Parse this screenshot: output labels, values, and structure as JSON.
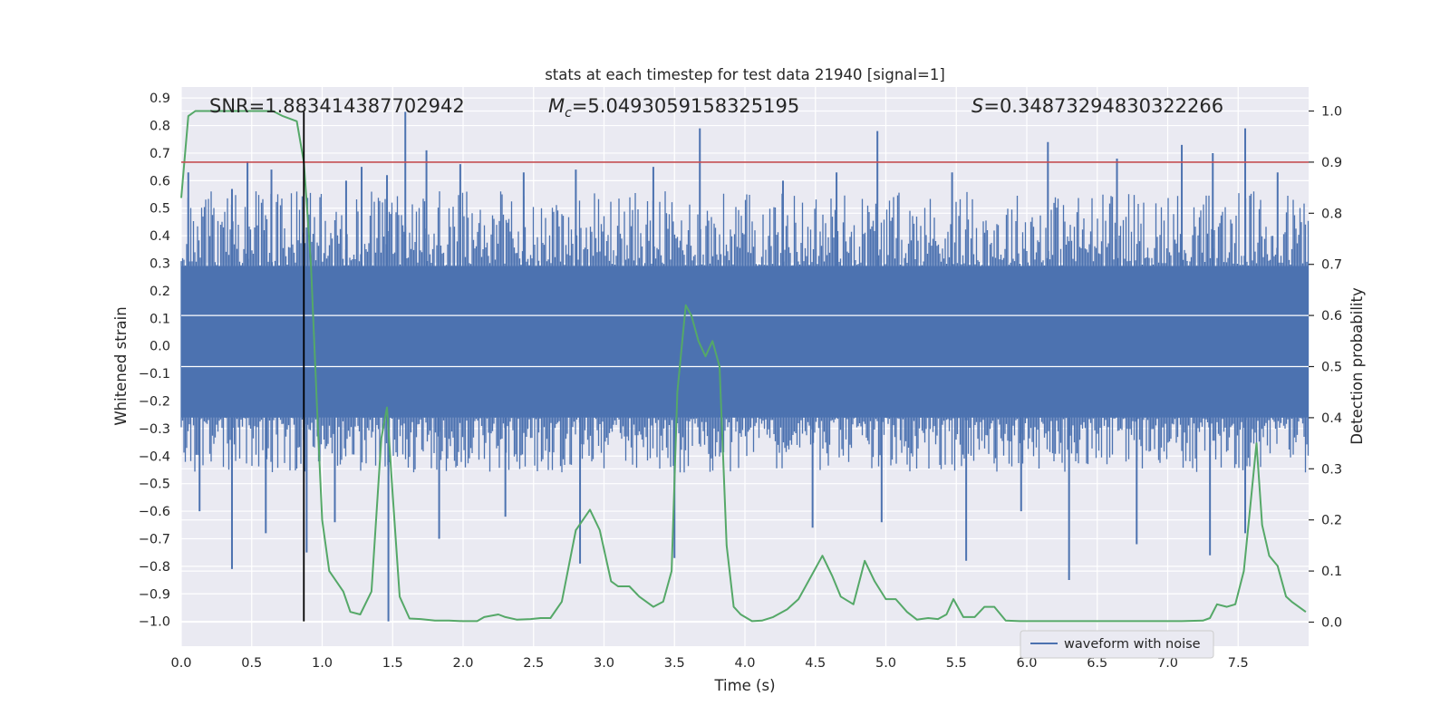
{
  "chart_data": {
    "type": "line",
    "title": "stats at each timestep for test data 21940 [signal=1]",
    "xlabel": "Time (s)",
    "ylabel": "Whitened strain",
    "y2label": "Detection probability",
    "xlim": [
      0.0,
      8.0
    ],
    "ylim": [
      -1.09,
      0.94
    ],
    "y2lim": [
      -0.047,
      1.047
    ],
    "x_ticks": [
      "0.0",
      "0.5",
      "1.0",
      "1.5",
      "2.0",
      "2.5",
      "3.0",
      "3.5",
      "4.0",
      "4.5",
      "5.0",
      "5.5",
      "6.0",
      "6.5",
      "7.0",
      "7.5"
    ],
    "x_tick_values": [
      0.0,
      0.5,
      1.0,
      1.5,
      2.0,
      2.5,
      3.0,
      3.5,
      4.0,
      4.5,
      5.0,
      5.5,
      6.0,
      6.5,
      7.0,
      7.5
    ],
    "y_ticks": [
      "0.9",
      "0.8",
      "0.7",
      "0.6",
      "0.5",
      "0.4",
      "0.3",
      "0.2",
      "0.1",
      "0.0",
      "−0.1",
      "−0.2",
      "−0.3",
      "−0.4",
      "−0.5",
      "−0.6",
      "−0.7",
      "−0.8",
      "−0.9",
      "−1.0"
    ],
    "y_tick_values": [
      0.9,
      0.8,
      0.7,
      0.6,
      0.5,
      0.4,
      0.3,
      0.2,
      0.1,
      0.0,
      -0.1,
      -0.2,
      -0.3,
      -0.4,
      -0.5,
      -0.6,
      -0.7,
      -0.8,
      -0.9,
      -1.0
    ],
    "y2_ticks": [
      "1.0",
      "0.9",
      "0.8",
      "0.7",
      "0.6",
      "0.5",
      "0.4",
      "0.3",
      "0.2",
      "0.1",
      "0.0"
    ],
    "y2_tick_values": [
      1.0,
      0.9,
      0.8,
      0.7,
      0.6,
      0.5,
      0.4,
      0.3,
      0.2,
      0.1,
      0.0
    ],
    "grid": true,
    "legend": {
      "position": "lower-right",
      "entries": [
        "waveform with noise"
      ]
    },
    "annotations": {
      "snr": "SNR=1.883414387702942",
      "mc_symbol": "M",
      "mc_sub": "c",
      "mc_value": "=5.0493059158325195",
      "s_symbol": "S",
      "s_value": "=0.34873294830322266"
    },
    "vertical_line": {
      "x": 0.87,
      "y_from": -1.0,
      "y_to": 0.85
    },
    "threshold_probability": 0.9,
    "series": [
      {
        "name": "waveform with noise",
        "kind": "noise-band",
        "core_band": [
          -0.26,
          0.29
        ],
        "typical_extent": [
          -0.45,
          0.55
        ],
        "spikes_up": [
          [
            0.05,
            0.63
          ],
          [
            0.36,
            0.57
          ],
          [
            0.47,
            0.67
          ],
          [
            0.64,
            0.64
          ],
          [
            1.17,
            0.6
          ],
          [
            1.28,
            0.65
          ],
          [
            1.46,
            0.62
          ],
          [
            1.59,
            0.85
          ],
          [
            1.74,
            0.71
          ],
          [
            1.98,
            0.66
          ],
          [
            2.43,
            0.63
          ],
          [
            2.8,
            0.64
          ],
          [
            3.35,
            0.65
          ],
          [
            3.68,
            0.79
          ],
          [
            4.27,
            0.6
          ],
          [
            4.65,
            0.63
          ],
          [
            4.94,
            0.78
          ],
          [
            5.47,
            0.63
          ],
          [
            6.15,
            0.74
          ],
          [
            6.64,
            0.68
          ],
          [
            7.1,
            0.73
          ],
          [
            7.32,
            0.7
          ],
          [
            7.55,
            0.79
          ],
          [
            7.78,
            0.63
          ]
        ],
        "spikes_down": [
          [
            0.13,
            -0.6
          ],
          [
            0.36,
            -0.81
          ],
          [
            0.6,
            -0.68
          ],
          [
            0.89,
            -0.75
          ],
          [
            1.09,
            -0.64
          ],
          [
            1.47,
            -1.0
          ],
          [
            1.83,
            -0.7
          ],
          [
            2.3,
            -0.62
          ],
          [
            2.83,
            -0.79
          ],
          [
            3.5,
            -0.77
          ],
          [
            4.48,
            -0.66
          ],
          [
            4.97,
            -0.64
          ],
          [
            5.57,
            -0.78
          ],
          [
            5.96,
            -0.6
          ],
          [
            6.3,
            -0.85
          ],
          [
            6.78,
            -0.72
          ],
          [
            7.3,
            -0.76
          ],
          [
            7.55,
            -0.68
          ]
        ]
      },
      {
        "name": "",
        "kind": "probability",
        "axis": "right",
        "x": [
          0.0,
          0.05,
          0.1,
          0.2,
          0.3,
          0.4,
          0.5,
          0.6,
          0.65,
          0.72,
          0.82,
          0.87,
          0.92,
          0.97,
          1.0,
          1.05,
          1.1,
          1.15,
          1.2,
          1.27,
          1.35,
          1.42,
          1.46,
          1.5,
          1.55,
          1.62,
          1.7,
          1.8,
          1.9,
          2.0,
          2.1,
          2.15,
          2.25,
          2.3,
          2.38,
          2.48,
          2.55,
          2.62,
          2.7,
          2.8,
          2.9,
          2.97,
          3.05,
          3.1,
          3.18,
          3.25,
          3.35,
          3.42,
          3.48,
          3.52,
          3.58,
          3.62,
          3.67,
          3.72,
          3.77,
          3.82,
          3.87,
          3.92,
          3.97,
          4.05,
          4.12,
          4.2,
          4.3,
          4.38,
          4.45,
          4.55,
          4.62,
          4.68,
          4.77,
          4.85,
          4.92,
          5.0,
          5.07,
          5.15,
          5.22,
          5.3,
          5.37,
          5.43,
          5.48,
          5.55,
          5.63,
          5.7,
          5.77,
          5.85,
          5.95,
          6.1,
          6.25,
          6.4,
          6.55,
          6.7,
          6.9,
          7.1,
          7.25,
          7.3,
          7.35,
          7.42,
          7.48,
          7.54,
          7.58,
          7.63,
          7.67,
          7.72,
          7.78,
          7.84,
          7.88,
          7.93,
          7.98
        ],
        "y": [
          0.83,
          0.99,
          1.0,
          1.0,
          1.0,
          1.0,
          1.0,
          1.0,
          1.0,
          0.99,
          0.98,
          0.9,
          0.7,
          0.38,
          0.2,
          0.1,
          0.08,
          0.06,
          0.02,
          0.015,
          0.06,
          0.36,
          0.42,
          0.25,
          0.05,
          0.007,
          0.006,
          0.003,
          0.003,
          0.002,
          0.002,
          0.01,
          0.015,
          0.01,
          0.005,
          0.006,
          0.008,
          0.008,
          0.04,
          0.18,
          0.22,
          0.18,
          0.08,
          0.07,
          0.07,
          0.05,
          0.03,
          0.04,
          0.1,
          0.45,
          0.62,
          0.6,
          0.55,
          0.52,
          0.55,
          0.5,
          0.15,
          0.03,
          0.015,
          0.002,
          0.003,
          0.01,
          0.025,
          0.045,
          0.08,
          0.13,
          0.09,
          0.05,
          0.035,
          0.12,
          0.08,
          0.045,
          0.045,
          0.02,
          0.005,
          0.008,
          0.006,
          0.015,
          0.045,
          0.01,
          0.01,
          0.03,
          0.03,
          0.003,
          0.002,
          0.002,
          0.002,
          0.002,
          0.002,
          0.002,
          0.002,
          0.002,
          0.003,
          0.008,
          0.035,
          0.03,
          0.035,
          0.1,
          0.21,
          0.35,
          0.19,
          0.13,
          0.11,
          0.05,
          0.04,
          0.03,
          0.02
        ]
      }
    ]
  },
  "colors": {
    "plot_bg": "#eaeaf2",
    "grid": "#ffffff",
    "waveform": "#4c72b0",
    "probability": "#55a868",
    "threshold": "#c44e52",
    "vline": "#000000",
    "text": "#262626"
  }
}
